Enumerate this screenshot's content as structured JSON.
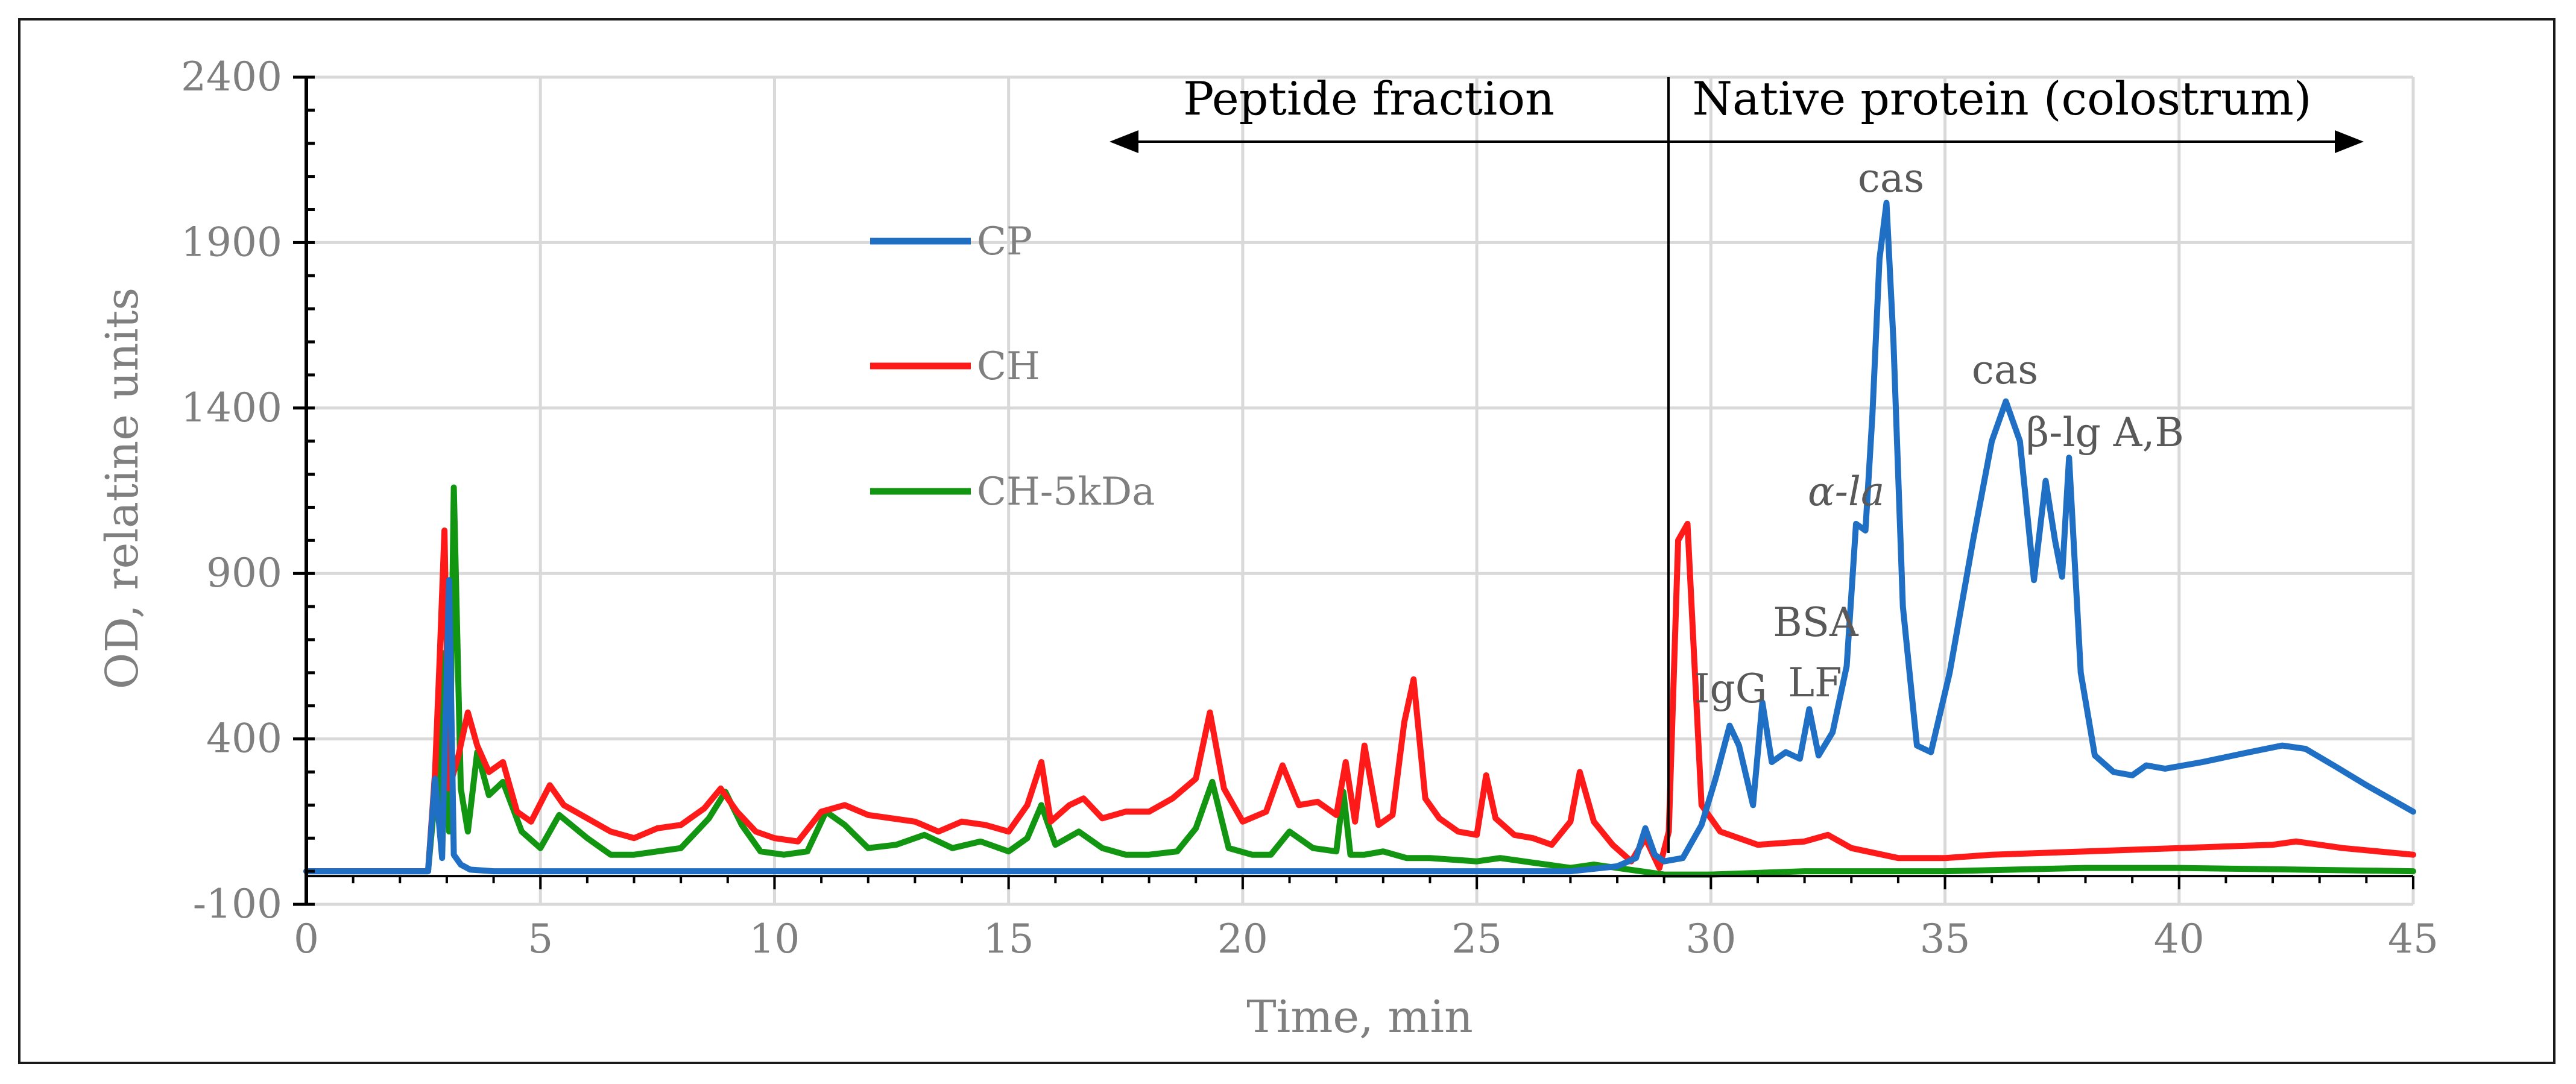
{
  "chart_data": {
    "type": "line",
    "xlabel": "Time, min",
    "ylabel": "OD, relatine units",
    "xlim": [
      0,
      45
    ],
    "ylim": [
      -100,
      2400
    ],
    "xticks": [
      0,
      5,
      10,
      15,
      20,
      25,
      30,
      35,
      40,
      45
    ],
    "yticks": [
      -100,
      400,
      900,
      1400,
      1900,
      2400
    ],
    "grid": true,
    "legend_position": "upper-left-center",
    "series": [
      {
        "name": "CP",
        "color": "#1f6fc5",
        "x": [
          0,
          2.6,
          2.75,
          2.9,
          3.05,
          3.15,
          3.3,
          3.5,
          4,
          6,
          10,
          20,
          25,
          27,
          28,
          28.4,
          28.6,
          28.8,
          29,
          29.4,
          29.8,
          30.1,
          30.4,
          30.6,
          30.9,
          31.1,
          31.3,
          31.6,
          31.9,
          32.1,
          32.3,
          32.6,
          32.9,
          33.1,
          33.3,
          33.45,
          33.6,
          33.75,
          33.9,
          34.1,
          34.4,
          34.7,
          35.1,
          35.6,
          36,
          36.3,
          36.6,
          36.9,
          37.15,
          37.35,
          37.5,
          37.65,
          37.9,
          38.2,
          38.6,
          39,
          39.3,
          39.7,
          40.5,
          41.5,
          42.2,
          42.7,
          43.3,
          44,
          45
        ],
        "values": [
          0,
          0,
          280,
          40,
          880,
          50,
          20,
          5,
          0,
          0,
          0,
          0,
          0,
          0,
          15,
          40,
          130,
          50,
          30,
          40,
          140,
          280,
          440,
          380,
          200,
          510,
          330,
          360,
          340,
          490,
          350,
          420,
          620,
          1050,
          1030,
          1380,
          1850,
          2020,
          1600,
          800,
          380,
          360,
          600,
          1000,
          1300,
          1420,
          1300,
          880,
          1180,
          1000,
          890,
          1250,
          600,
          350,
          300,
          290,
          320,
          310,
          330,
          360,
          380,
          370,
          320,
          260,
          180
        ]
      },
      {
        "name": "CH",
        "color": "#ff1a1a",
        "x": [
          0,
          2.6,
          2.75,
          2.85,
          2.95,
          3.05,
          3.25,
          3.45,
          3.65,
          3.9,
          4.2,
          4.5,
          4.8,
          5.2,
          5.5,
          6,
          6.5,
          7,
          7.5,
          8,
          8.5,
          8.85,
          9.2,
          9.6,
          10,
          10.5,
          11,
          11.5,
          12,
          12.5,
          13,
          13.5,
          14,
          14.5,
          15,
          15.4,
          15.7,
          15.9,
          16.3,
          16.6,
          17,
          17.5,
          18,
          18.5,
          19,
          19.3,
          19.6,
          20,
          20.5,
          20.85,
          21.2,
          21.6,
          22,
          22.2,
          22.4,
          22.6,
          22.9,
          23.2,
          23.45,
          23.65,
          23.9,
          24.2,
          24.6,
          25,
          25.2,
          25.4,
          25.8,
          26.2,
          26.6,
          27,
          27.2,
          27.5,
          27.9,
          28.3,
          28.6,
          28.9,
          29.1,
          29.3,
          29.5,
          29.8,
          30.2,
          31,
          32,
          32.5,
          33,
          34,
          35,
          36,
          38,
          40,
          42,
          42.5,
          43.5,
          45
        ],
        "values": [
          0,
          0,
          300,
          650,
          1030,
          250,
          350,
          480,
          380,
          300,
          330,
          180,
          150,
          260,
          200,
          160,
          120,
          100,
          130,
          140,
          190,
          250,
          180,
          120,
          100,
          90,
          180,
          200,
          170,
          160,
          150,
          120,
          150,
          140,
          120,
          200,
          330,
          150,
          200,
          220,
          160,
          180,
          180,
          220,
          280,
          480,
          250,
          150,
          180,
          320,
          200,
          210,
          170,
          330,
          150,
          380,
          140,
          170,
          450,
          580,
          220,
          160,
          120,
          110,
          290,
          160,
          110,
          100,
          80,
          150,
          300,
          150,
          80,
          30,
          100,
          10,
          120,
          1000,
          1050,
          200,
          120,
          80,
          90,
          110,
          70,
          40,
          40,
          50,
          60,
          70,
          80,
          90,
          70,
          50
        ],
        "_note": "values near 29.3 min rise to ~1090 peak"
      },
      {
        "name": "CH-5kDa",
        "color": "#129612",
        "x": [
          0,
          2.6,
          2.75,
          2.85,
          2.95,
          3.05,
          3.15,
          3.3,
          3.45,
          3.65,
          3.9,
          4.2,
          4.6,
          5,
          5.4,
          6,
          6.5,
          7,
          8,
          8.6,
          8.95,
          9.3,
          9.7,
          10.2,
          10.7,
          11.1,
          11.5,
          12,
          12.6,
          13.2,
          13.8,
          14.4,
          15,
          15.4,
          15.7,
          16,
          16.5,
          17,
          17.5,
          18,
          18.6,
          19,
          19.35,
          19.7,
          20.2,
          20.6,
          21,
          21.5,
          22,
          22.15,
          22.3,
          22.6,
          23,
          23.5,
          24,
          25,
          25.5,
          26,
          26.5,
          27,
          27.5,
          28,
          28.5,
          29,
          30,
          32,
          35,
          38,
          40,
          45
        ],
        "values": [
          0,
          0,
          230,
          180,
          660,
          120,
          1160,
          250,
          120,
          360,
          230,
          270,
          120,
          70,
          170,
          100,
          50,
          50,
          70,
          160,
          240,
          140,
          60,
          50,
          60,
          180,
          140,
          70,
          80,
          110,
          70,
          90,
          60,
          100,
          200,
          80,
          120,
          70,
          50,
          50,
          60,
          130,
          270,
          70,
          50,
          50,
          120,
          70,
          60,
          240,
          50,
          50,
          60,
          40,
          40,
          30,
          40,
          30,
          20,
          10,
          20,
          10,
          0,
          -10,
          -10,
          0,
          0,
          10,
          10,
          0
        ]
      }
    ],
    "annotations": [
      "cas",
      "cas",
      "β-lg A,B",
      "α-la",
      "BSA",
      "IgG",
      "LF"
    ],
    "region_labels": [
      "Peptide fraction",
      "Native protein (colostrum)"
    ],
    "divider_x": 29
  }
}
